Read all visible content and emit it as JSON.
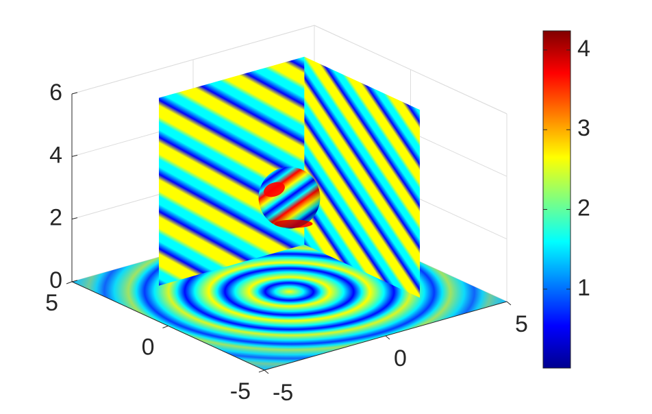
{
  "chart_data": {
    "type": "slice3d",
    "colormap": "jet",
    "xlim": [
      -5,
      5
    ],
    "xticks": [
      -5,
      0,
      5
    ],
    "ylim": [
      -5,
      5
    ],
    "yticks": [
      -5,
      0,
      5
    ],
    "zlim": [
      0,
      6
    ],
    "zticks": [
      0,
      2,
      4,
      6
    ],
    "clim": [
      0.01,
      4.24
    ],
    "cticks": [
      1,
      2,
      3,
      4
    ],
    "grid": true
  }
}
